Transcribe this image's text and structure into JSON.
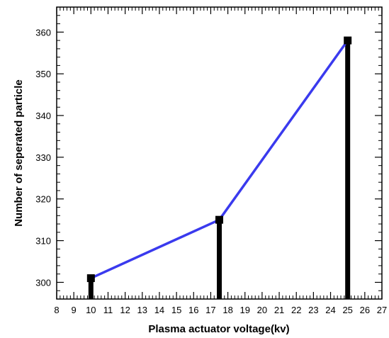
{
  "chart_data": {
    "type": "line",
    "title": "",
    "xlabel": "Plasma actuator voltage(kv)",
    "ylabel": "Number of seperated particle",
    "xlim": [
      8,
      27
    ],
    "ylim": [
      296,
      366
    ],
    "x_ticks": [
      8,
      9,
      10,
      11,
      12,
      13,
      14,
      15,
      16,
      17,
      18,
      19,
      20,
      21,
      22,
      23,
      24,
      25,
      26,
      27
    ],
    "y_ticks": [
      300,
      310,
      320,
      330,
      340,
      350,
      360
    ],
    "grid": false,
    "legend": "none",
    "series": [
      {
        "x": [
          10,
          17.5,
          25
        ],
        "values": [
          301,
          315,
          358
        ],
        "line_color": "#3a3aee",
        "marker": "square",
        "marker_color": "#000000",
        "stem_color": "#000000"
      }
    ]
  }
}
